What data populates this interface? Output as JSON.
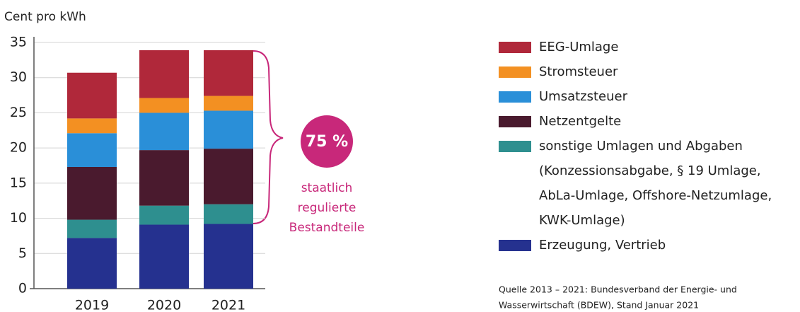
{
  "chart_data": {
    "type": "stacked_bar",
    "y_axis_label": "Cent pro kWh",
    "categories": [
      "2019",
      "2020",
      "2021"
    ],
    "series": [
      {
        "name": "Erzeugung, Vertrieb",
        "color": "#25318f",
        "values": [
          7.2,
          9.1,
          9.2
        ]
      },
      {
        "name": "sonstige Umlagen und Abgaben",
        "color": "#2e8f8f",
        "values": [
          2.6,
          2.7,
          2.8
        ]
      },
      {
        "name": "Netzentgelte",
        "color": "#4a1a2e",
        "values": [
          7.5,
          7.9,
          7.9
        ]
      },
      {
        "name": "Umsatzsteuer",
        "color": "#2a8fd8",
        "values": [
          4.8,
          5.3,
          5.4
        ]
      },
      {
        "name": "Stromsteuer",
        "color": "#f39022",
        "values": [
          2.1,
          2.1,
          2.1
        ]
      },
      {
        "name": "EEG-Umlage",
        "color": "#b0283a",
        "values": [
          6.5,
          6.8,
          6.5
        ]
      }
    ],
    "legend_note": [
      "(Konzessionsabgabe, § 19 Umlage,",
      "AbLa-Umlage, Offshore-Netzumlage,",
      "KWK-Umlage)"
    ],
    "annotation": {
      "value": "75 %",
      "lines": [
        "staatlich",
        "regulierte",
        "Bestandteile"
      ]
    },
    "source": [
      "Quelle 2013 – 2021: Bundesverband der Energie- und",
      "Wasserwirtschaft (BDEW), Stand Januar 2021"
    ],
    "ylim": [
      0,
      35
    ],
    "yticks": [
      0,
      5,
      10,
      15,
      20,
      25,
      30,
      35
    ],
    "grid": true
  }
}
